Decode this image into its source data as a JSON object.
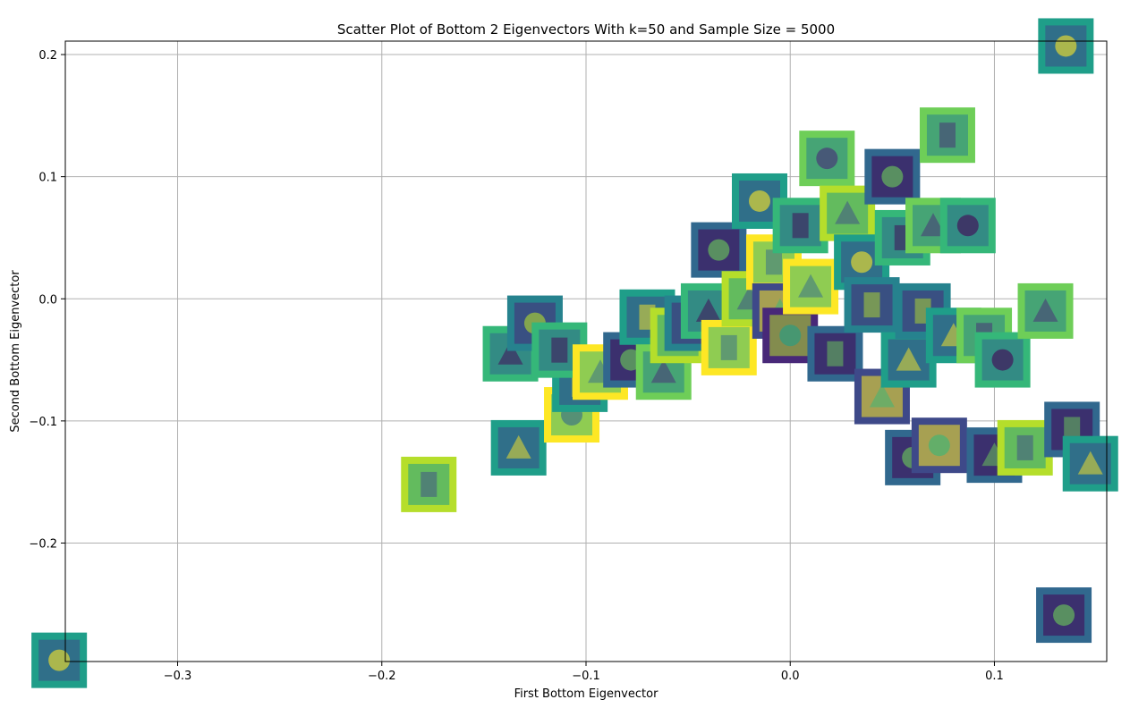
{
  "chart_data": {
    "type": "scatter",
    "marker": "image-thumbnail",
    "title": "Scatter Plot of Bottom 2 Eigenvectors With k=50 and Sample Size = 5000",
    "xlabel": "First Bottom Eigenvector",
    "ylabel": "Second Bottom Eigenvector",
    "xlim": [
      -0.355,
      0.155
    ],
    "ylim": [
      -0.297,
      0.211
    ],
    "xticks": [
      -0.3,
      -0.2,
      -0.1,
      0.0,
      0.1
    ],
    "xtick_labels": [
      "−0.3",
      "−0.2",
      "−0.1",
      "0.0",
      "0.1"
    ],
    "yticks": [
      0.2,
      0.1,
      0.0,
      -0.1,
      -0.2
    ],
    "ytick_labels": [
      "0.2",
      "0.1",
      "0.0",
      "−0.1",
      "−0.2"
    ],
    "grid": true,
    "thumbnail_palette": [
      "#fde725",
      "#b5de2b",
      "#6ece58",
      "#35b779",
      "#1f9e89",
      "#26828e",
      "#31688e",
      "#3e4989",
      "#482878",
      "#440154"
    ],
    "points": [
      {
        "x": -0.358,
        "y": -0.296,
        "tone": 4
      },
      {
        "x": -0.177,
        "y": -0.152,
        "tone": 1
      },
      {
        "x": -0.133,
        "y": -0.122,
        "tone": 4
      },
      {
        "x": -0.107,
        "y": -0.095,
        "tone": 0
      },
      {
        "x": -0.103,
        "y": -0.07,
        "tone": 4
      },
      {
        "x": -0.137,
        "y": -0.045,
        "tone": 3
      },
      {
        "x": -0.125,
        "y": -0.02,
        "tone": 5
      },
      {
        "x": -0.113,
        "y": -0.042,
        "tone": 3
      },
      {
        "x": -0.093,
        "y": -0.06,
        "tone": 0
      },
      {
        "x": -0.078,
        "y": -0.05,
        "tone": 6
      },
      {
        "x": -0.07,
        "y": -0.015,
        "tone": 4
      },
      {
        "x": -0.062,
        "y": -0.06,
        "tone": 2
      },
      {
        "x": -0.055,
        "y": -0.03,
        "tone": 1
      },
      {
        "x": -0.048,
        "y": -0.02,
        "tone": 5
      },
      {
        "x": -0.04,
        "y": -0.01,
        "tone": 3
      },
      {
        "x": -0.035,
        "y": 0.04,
        "tone": 6
      },
      {
        "x": -0.03,
        "y": -0.04,
        "tone": 0
      },
      {
        "x": -0.02,
        "y": 0.0,
        "tone": 1
      },
      {
        "x": -0.015,
        "y": 0.08,
        "tone": 4
      },
      {
        "x": -0.008,
        "y": 0.03,
        "tone": 0
      },
      {
        "x": -0.005,
        "y": -0.01,
        "tone": 7
      },
      {
        "x": 0.0,
        "y": -0.03,
        "tone": 8
      },
      {
        "x": 0.005,
        "y": 0.06,
        "tone": 3
      },
      {
        "x": 0.01,
        "y": 0.01,
        "tone": 0
      },
      {
        "x": 0.018,
        "y": 0.115,
        "tone": 2
      },
      {
        "x": 0.022,
        "y": -0.045,
        "tone": 6
      },
      {
        "x": 0.028,
        "y": 0.07,
        "tone": 1
      },
      {
        "x": 0.035,
        "y": 0.03,
        "tone": 4
      },
      {
        "x": 0.04,
        "y": -0.005,
        "tone": 5
      },
      {
        "x": 0.045,
        "y": -0.08,
        "tone": 7
      },
      {
        "x": 0.05,
        "y": 0.1,
        "tone": 6
      },
      {
        "x": 0.055,
        "y": 0.05,
        "tone": 3
      },
      {
        "x": 0.058,
        "y": -0.05,
        "tone": 4
      },
      {
        "x": 0.06,
        "y": -0.13,
        "tone": 6
      },
      {
        "x": 0.065,
        "y": -0.01,
        "tone": 5
      },
      {
        "x": 0.07,
        "y": 0.06,
        "tone": 2
      },
      {
        "x": 0.073,
        "y": -0.12,
        "tone": 7
      },
      {
        "x": 0.077,
        "y": 0.134,
        "tone": 2
      },
      {
        "x": 0.08,
        "y": -0.03,
        "tone": 4
      },
      {
        "x": 0.087,
        "y": 0.06,
        "tone": 3
      },
      {
        "x": 0.095,
        "y": -0.03,
        "tone": 2
      },
      {
        "x": 0.1,
        "y": -0.128,
        "tone": 6
      },
      {
        "x": 0.104,
        "y": -0.05,
        "tone": 3
      },
      {
        "x": 0.115,
        "y": -0.122,
        "tone": 1
      },
      {
        "x": 0.125,
        "y": -0.01,
        "tone": 2
      },
      {
        "x": 0.135,
        "y": 0.207,
        "tone": 4
      },
      {
        "x": 0.138,
        "y": -0.107,
        "tone": 6
      },
      {
        "x": 0.147,
        "y": -0.135,
        "tone": 4
      },
      {
        "x": 0.134,
        "y": -0.259,
        "tone": 6
      }
    ]
  }
}
